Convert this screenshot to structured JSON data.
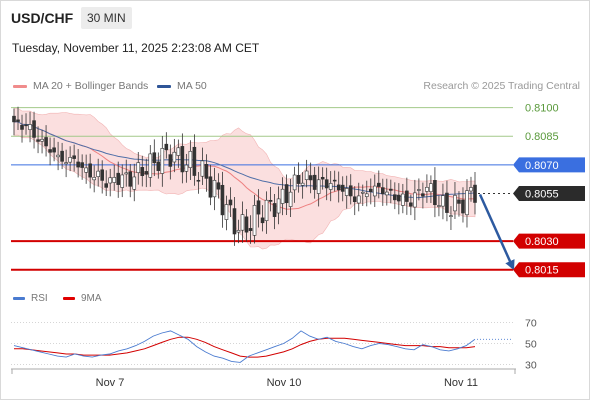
{
  "header": {
    "symbol": "USD/CHF",
    "timeframe": "30 MIN",
    "datetime": "Tuesday, November 11, 2025 2:23:08 AM CET"
  },
  "legend": {
    "items": [
      {
        "label": "MA 20 + Bollinger Bands",
        "color": "#f08c8c"
      },
      {
        "label": "MA 50",
        "color": "#2f5597"
      }
    ],
    "credit": "Research © 2025 Trading Central"
  },
  "rsi_legend": {
    "items": [
      {
        "label": "RSI",
        "color": "#4a7bd0"
      },
      {
        "label": "9MA",
        "color": "#e00000"
      }
    ]
  },
  "colors": {
    "green_level": "#a3c98a",
    "blue_level": "#3a6fe0",
    "red_level": "#d20000",
    "current_price": "#2b2b2b",
    "arrow": "#2d5aa0",
    "bollinger_fill": "#f9d4d4",
    "candle": "#333333"
  },
  "chart_data": [
    {
      "type": "candlestick",
      "title": "USD/CHF",
      "ylim": [
        0.8007,
        0.8104
      ],
      "grid": false,
      "legend_position": "top-left",
      "x_tick_labels": [
        "Nov 7",
        "Nov 10",
        "Nov 11"
      ],
      "levels": [
        {
          "label": "0.8100",
          "value": 0.81,
          "kind": "resistance"
        },
        {
          "label": "0.8085",
          "value": 0.8085,
          "kind": "resistance"
        },
        {
          "label": "0.8070",
          "value": 0.807,
          "kind": "pivot"
        },
        {
          "label": "0.8055",
          "value": 0.8055,
          "kind": "current"
        },
        {
          "label": "0.8030",
          "value": 0.803,
          "kind": "support"
        },
        {
          "label": "0.8015",
          "value": 0.8015,
          "kind": "support"
        }
      ],
      "close_path": [
        0.809,
        0.8092,
        0.8088,
        0.8082,
        0.8079,
        0.8074,
        0.8072,
        0.8073,
        0.8067,
        0.8065,
        0.8063,
        0.806,
        0.8064,
        0.8062,
        0.8065,
        0.8068,
        0.8071,
        0.8074,
        0.8076,
        0.8073,
        0.8071,
        0.8067,
        0.8064,
        0.8057,
        0.8051,
        0.8042,
        0.8036,
        0.8039,
        0.8044,
        0.8047,
        0.8049,
        0.8053,
        0.8058,
        0.8064,
        0.8062,
        0.806,
        0.8061,
        0.8059,
        0.8057,
        0.8052,
        0.8054,
        0.8057,
        0.8058,
        0.8055,
        0.8053,
        0.8051,
        0.8052,
        0.8058,
        0.8056,
        0.8049,
        0.8047,
        0.8049,
        0.8052,
        0.8057
      ],
      "projection": {
        "from": 0.8055,
        "to": 0.8015
      }
    },
    {
      "type": "line",
      "title": "RSI",
      "ylim": [
        20,
        80
      ],
      "y_tick_labels": [
        "70",
        "50",
        "30"
      ],
      "reference_lines": [
        70,
        50,
        30
      ],
      "series": [
        {
          "name": "RSI",
          "values": [
            48,
            46,
            44,
            42,
            40,
            38,
            37,
            40,
            38,
            37,
            39,
            40,
            43,
            45,
            48,
            52,
            57,
            60,
            62,
            58,
            54,
            47,
            42,
            38,
            36,
            33,
            32,
            38,
            41,
            44,
            47,
            50,
            55,
            62,
            57,
            54,
            56,
            52,
            50,
            47,
            45,
            48,
            50,
            49,
            47,
            45,
            44,
            49,
            47,
            44,
            43,
            45,
            48,
            54
          ]
        },
        {
          "name": "9MA",
          "values": [
            45,
            45,
            44,
            43,
            42,
            41,
            40,
            40,
            39,
            39,
            39,
            39,
            40,
            41,
            43,
            45,
            48,
            51,
            54,
            56,
            56,
            54,
            51,
            47,
            44,
            41,
            38,
            37,
            37,
            38,
            40,
            42,
            45,
            49,
            52,
            54,
            55,
            55,
            55,
            54,
            53,
            52,
            51,
            50,
            49,
            48,
            48,
            48,
            47,
            47,
            46,
            46,
            46,
            47
          ]
        }
      ]
    }
  ]
}
